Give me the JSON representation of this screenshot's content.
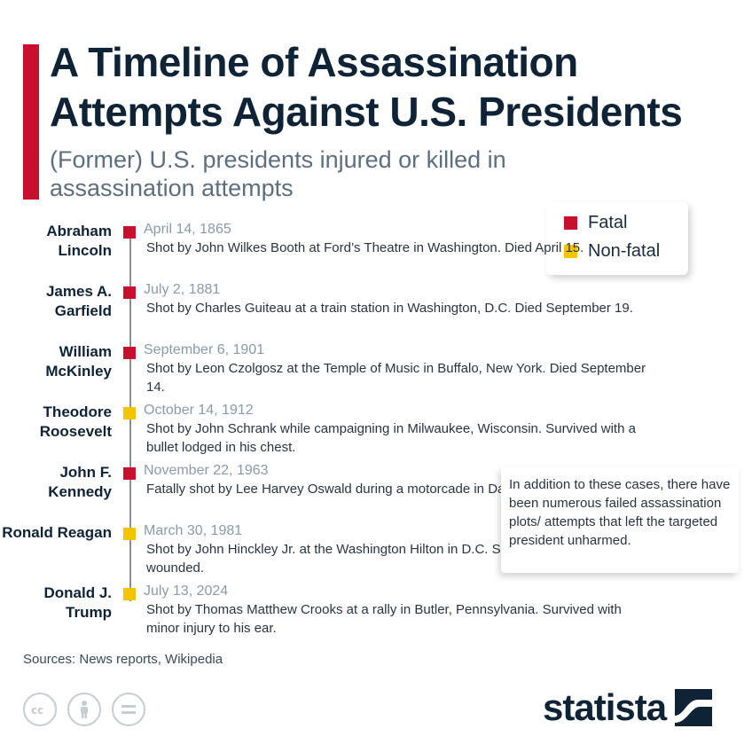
{
  "title": "A Timeline of Assassination Attempts Against U.S. Presidents",
  "subtitle": "(Former) U.S. presidents injured or killed in assassination attempts",
  "legend": [
    {
      "label": "Fatal",
      "color": "#c8102e"
    },
    {
      "label": "Non-fatal",
      "color": "#f5c400"
    }
  ],
  "entries": [
    {
      "name": "Abraham Lincoln",
      "date": "April 14, 1865",
      "status": "fatal",
      "description": "Shot by John Wilkes Booth at Ford’s Theatre in Washington. Died April 15."
    },
    {
      "name": "James A. Garfield",
      "date": "July 2, 1881",
      "status": "fatal",
      "description": "Shot by Charles Guiteau at a train station in Washington, D.C. Died September 19."
    },
    {
      "name": "William McKinley",
      "date": "September 6, 1901",
      "status": "fatal",
      "description": "Shot by Leon Czolgosz at the Temple of Music in Buffalo, New York. Died September 14."
    },
    {
      "name": "Theodore Roosevelt",
      "date": "October 14, 1912",
      "status": "non-fatal",
      "description": "Shot by John Schrank while campaigning in Milwaukee, Wisconsin. Survived with a bullet lodged in his chest."
    },
    {
      "name": "John F. Kennedy",
      "date": "November 22, 1963",
      "status": "fatal",
      "description": "Fatally shot by Lee Harvey Oswald during a motorcade in Dallas, Texas."
    },
    {
      "name": "Ronald Reagan",
      "date": "March 30, 1981",
      "status": "non-fatal",
      "description": "Shot by John Hinckley Jr. at the Washington Hilton in D.C. Survived seriously wounded."
    },
    {
      "name": "Donald J. Trump",
      "date": "July 13, 2024",
      "status": "non-fatal",
      "description": "Shot by Thomas Matthew Crooks at a rally in Butler, Pennsylvania. Survived with minor injury to his ear."
    }
  ],
  "note": "In addition to these cases, there have been numerous failed assassination plots/ attempts that left the targeted president unharmed.",
  "sources": "Sources: News reports, Wikipedia",
  "license_icons": [
    "cc-icon",
    "person-icon",
    "equals-icon"
  ],
  "brand": "statista"
}
